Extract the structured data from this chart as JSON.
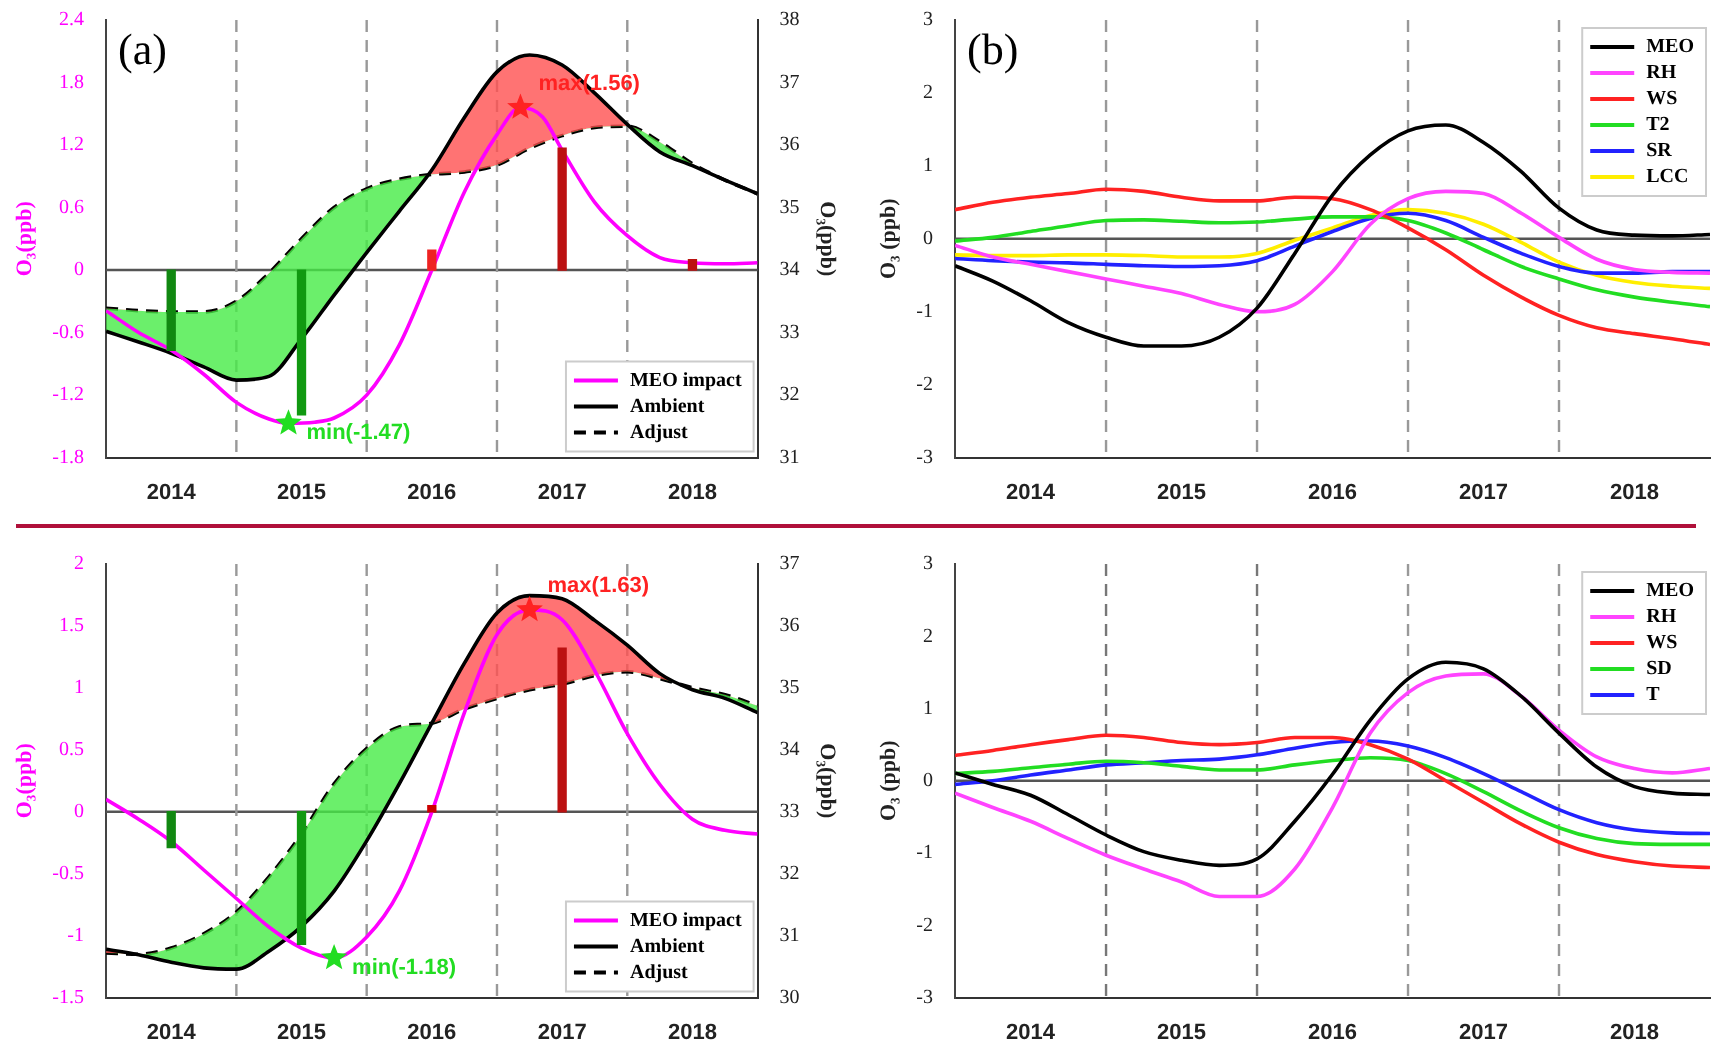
{
  "chart_data": [
    {
      "type": "line",
      "ylabel": "O₃(ppb)",
      "y2label": "O₃(ppb)",
      "annotations": [
        "(a)",
        {
          "text": "max(1.56)",
          "x": 2016.68,
          "y": 1.56
        },
        {
          "text": "min(-1.47)",
          "x": 2014.9,
          "y": -1.47
        }
      ],
      "x": [
        2013.5,
        2013.75,
        2014,
        2014.25,
        2014.5,
        2014.75,
        2015,
        2015.25,
        2015.5,
        2015.75,
        2016,
        2016.25,
        2016.5,
        2016.75,
        2017,
        2017.25,
        2017.5,
        2017.75,
        2018,
        2018.25,
        2018.5
      ],
      "series": [
        {
          "name": "MEO impact",
          "color": "#ff00ff",
          "x": [
            2013.5,
            2013.75,
            2014,
            2014.25,
            2014.5,
            2014.75,
            2014.9,
            2015.1,
            2015.25,
            2015.5,
            2015.75,
            2016,
            2016.25,
            2016.5,
            2016.68,
            2016.85,
            2017,
            2017.25,
            2017.5,
            2017.75,
            2018,
            2018.25,
            2018.5
          ],
          "values": [
            -0.39,
            -0.6,
            -0.77,
            -1.0,
            -1.27,
            -1.43,
            -1.47,
            -1.46,
            -1.42,
            -1.2,
            -0.72,
            0,
            0.75,
            1.3,
            1.56,
            1.47,
            1.15,
            0.65,
            0.33,
            0.12,
            0.07,
            0.06,
            0.07
          ]
        },
        {
          "name": "Ambient",
          "color": "#000000",
          "axis": "y2",
          "values": [
            33.02,
            32.85,
            32.67,
            32.45,
            32.24,
            32.3,
            32.9,
            33.6,
            34.28,
            34.94,
            35.6,
            36.44,
            37.17,
            37.44,
            37.28,
            36.83,
            36.33,
            35.89,
            35.67,
            35.44,
            35.22
          ]
        },
        {
          "name": "Adjust",
          "color": "#000000",
          "axis": "y2",
          "line_style": "dashed",
          "values": [
            33.39,
            33.35,
            33.33,
            33.33,
            33.5,
            33.95,
            34.5,
            35.0,
            35.3,
            35.45,
            35.53,
            35.57,
            35.68,
            35.95,
            36.15,
            36.28,
            36.3,
            36.05,
            35.7,
            35.44,
            35.22
          ]
        },
        {
          "type": "bar",
          "x": [
            2014,
            2015,
            2016,
            2017,
            2018
          ],
          "values": [
            -0.77,
            -1.39,
            0.19,
            1.17,
            0.1
          ],
          "colors": [
            "#118811",
            "#119911",
            "#ee2222",
            "#bb1111",
            "#bb1111"
          ]
        },
        {
          "type": "scatter",
          "marker": "star",
          "color": "#22dd22",
          "x": [
            2014.9
          ],
          "values": [
            -1.47
          ]
        },
        {
          "type": "scatter",
          "marker": "star",
          "color": "#ff2222",
          "x": [
            2016.68
          ],
          "values": [
            1.56
          ]
        }
      ],
      "xlim": [
        2013.5,
        2018.5
      ],
      "xticks": [
        2014,
        2015,
        2016,
        2017,
        2018
      ],
      "ylim": [
        -1.8,
        2.4
      ],
      "yticks": [
        -1.8,
        -1.2,
        -0.6,
        0,
        0.6,
        1.2,
        1.8,
        2.4
      ],
      "y2lim": [
        31,
        38
      ],
      "y2ticks": [
        31,
        32,
        33,
        34,
        35,
        36,
        37,
        38
      ],
      "ref_lines": [
        {
          "axis": "y",
          "value": 0,
          "color": "#555555"
        },
        {
          "axis": "x",
          "value": 2014.5,
          "color": "#999999",
          "line_style": "dashed"
        },
        {
          "axis": "x",
          "value": 2015.5,
          "color": "#999999",
          "line_style": "dashed"
        },
        {
          "axis": "x",
          "value": 2016.5,
          "color": "#999999",
          "line_style": "dashed"
        },
        {
          "axis": "x",
          "value": 2017.5,
          "color": "#999999",
          "line_style": "dashed"
        }
      ],
      "legend": "bottom right"
    },
    {
      "type": "line",
      "ylabel": "O₃ (ppb)",
      "annotations": [
        "(b)"
      ],
      "x": [
        2013.5,
        2013.75,
        2014,
        2014.25,
        2014.5,
        2014.75,
        2015,
        2015.25,
        2015.5,
        2015.75,
        2016,
        2016.25,
        2016.5,
        2016.75,
        2017,
        2017.25,
        2017.5,
        2017.75,
        2018,
        2018.25,
        2018.5
      ],
      "series": [
        {
          "name": "MEO",
          "color": "#000000",
          "values": [
            -0.37,
            -0.58,
            -0.85,
            -1.15,
            -1.35,
            -1.47,
            -1.47,
            -1.35,
            -0.95,
            -0.2,
            0.6,
            1.15,
            1.48,
            1.56,
            1.32,
            0.92,
            0.42,
            0.12,
            0.05,
            0.04,
            0.06
          ]
        },
        {
          "name": "RH",
          "color": "#ff44ff",
          "values": [
            -0.09,
            -0.25,
            -0.35,
            -0.45,
            -0.55,
            -0.65,
            -0.75,
            -0.9,
            -1.0,
            -0.9,
            -0.45,
            0.2,
            0.55,
            0.65,
            0.62,
            0.35,
            0.02,
            -0.28,
            -0.42,
            -0.46,
            -0.47
          ]
        },
        {
          "name": "WS",
          "color": "#ff2222",
          "values": [
            0.4,
            0.5,
            0.57,
            0.62,
            0.68,
            0.65,
            0.57,
            0.52,
            0.52,
            0.57,
            0.55,
            0.4,
            0.15,
            -0.15,
            -0.5,
            -0.8,
            -1.05,
            -1.22,
            -1.3,
            -1.37,
            -1.45
          ]
        },
        {
          "name": "T2",
          "color": "#22dd22",
          "values": [
            -0.03,
            0.02,
            0.1,
            0.18,
            0.25,
            0.26,
            0.24,
            0.22,
            0.23,
            0.27,
            0.3,
            0.3,
            0.25,
            0.08,
            -0.15,
            -0.38,
            -0.55,
            -0.7,
            -0.8,
            -0.87,
            -0.93
          ]
        },
        {
          "name": "SR",
          "color": "#2222ff",
          "values": [
            -0.27,
            -0.3,
            -0.32,
            -0.33,
            -0.35,
            -0.37,
            -0.38,
            -0.37,
            -0.3,
            -0.1,
            0.1,
            0.28,
            0.35,
            0.25,
            0.02,
            -0.2,
            -0.38,
            -0.47,
            -0.47,
            -0.45,
            -0.45
          ]
        },
        {
          "name": "LCC",
          "color": "#ffee00",
          "values": [
            -0.22,
            -0.23,
            -0.23,
            -0.22,
            -0.22,
            -0.23,
            -0.25,
            -0.25,
            -0.2,
            -0.02,
            0.15,
            0.32,
            0.4,
            0.35,
            0.2,
            -0.05,
            -0.32,
            -0.5,
            -0.6,
            -0.65,
            -0.68
          ]
        }
      ],
      "xlim": [
        2013.5,
        2018.5
      ],
      "xticks": [
        2014,
        2015,
        2016,
        2017,
        2018
      ],
      "ylim": [
        -3,
        3
      ],
      "yticks": [
        -3,
        -2,
        -1,
        0,
        1,
        2,
        3
      ],
      "ref_lines": [
        {
          "axis": "y",
          "value": 0,
          "color": "#555555"
        },
        {
          "axis": "x",
          "value": 2014.5,
          "color": "#999999",
          "line_style": "dashed"
        },
        {
          "axis": "x",
          "value": 2015.5,
          "color": "#999999",
          "line_style": "dashed"
        },
        {
          "axis": "x",
          "value": 2016.5,
          "color": "#999999",
          "line_style": "dashed"
        },
        {
          "axis": "x",
          "value": 2017.5,
          "color": "#999999",
          "line_style": "dashed"
        }
      ],
      "legend": "top right"
    },
    {
      "type": "line",
      "ylabel": "O₃(ppb)",
      "y2label": "O₃(ppb)",
      "annotations": [
        {
          "text": "max(1.63)",
          "x": 2016.75,
          "y": 1.63
        },
        {
          "text": "min(-1.18)",
          "x": 2015.25,
          "y": -1.18
        }
      ],
      "x": [
        2013.5,
        2013.75,
        2014,
        2014.25,
        2014.5,
        2014.75,
        2015,
        2015.25,
        2015.5,
        2015.75,
        2016,
        2016.25,
        2016.5,
        2016.75,
        2017,
        2017.25,
        2017.5,
        2017.75,
        2018,
        2018.25,
        2018.5
      ],
      "series": [
        {
          "name": "MEO impact",
          "color": "#ff00ff",
          "values": [
            0.1,
            -0.06,
            -0.24,
            -0.47,
            -0.7,
            -0.93,
            -1.1,
            -1.18,
            -1.01,
            -0.64,
            0,
            0.8,
            1.43,
            1.63,
            1.55,
            1.14,
            0.63,
            0.22,
            -0.06,
            -0.15,
            -0.18
          ]
        },
        {
          "name": "Ambient",
          "color": "#000000",
          "axis": "y2",
          "values": [
            30.78,
            30.69,
            30.57,
            30.48,
            30.46,
            30.75,
            31.15,
            31.72,
            32.53,
            33.45,
            34.43,
            35.4,
            36.21,
            36.49,
            36.44,
            36.09,
            35.69,
            35.23,
            34.97,
            34.83,
            34.6
          ]
        },
        {
          "name": "Adjust",
          "color": "#000000",
          "axis": "y2",
          "line_style": "dashed",
          "values": [
            30.72,
            30.7,
            30.8,
            31.03,
            31.38,
            31.95,
            32.64,
            33.45,
            34.02,
            34.37,
            34.43,
            34.66,
            34.83,
            34.97,
            35.06,
            35.2,
            35.26,
            35.15,
            35.0,
            34.89,
            34.71
          ]
        },
        {
          "type": "bar",
          "x": [
            2014,
            2015,
            2016,
            2017
          ],
          "values": [
            -0.29,
            -1.07,
            0.05,
            1.32
          ],
          "colors": [
            "#118811",
            "#119911",
            "#cc0000",
            "#bb1111"
          ]
        },
        {
          "type": "scatter",
          "marker": "star",
          "color": "#22dd22",
          "x": [
            2015.25
          ],
          "values": [
            -1.18
          ]
        },
        {
          "type": "scatter",
          "marker": "star",
          "color": "#ff2222",
          "x": [
            2016.75
          ],
          "values": [
            1.63
          ]
        }
      ],
      "xlim": [
        2013.5,
        2018.5
      ],
      "xticks": [
        2014,
        2015,
        2016,
        2017,
        2018
      ],
      "ylim": [
        -1.5,
        2
      ],
      "yticks": [
        -1.5,
        -1,
        -0.5,
        0,
        0.5,
        1,
        1.5,
        2
      ],
      "y2lim": [
        30,
        37
      ],
      "y2ticks": [
        30,
        31,
        32,
        33,
        34,
        35,
        36,
        37
      ],
      "ref_lines": [
        {
          "axis": "y",
          "value": 0,
          "color": "#555555"
        },
        {
          "axis": "x",
          "value": 2014.5,
          "color": "#999999",
          "line_style": "dashed"
        },
        {
          "axis": "x",
          "value": 2015.5,
          "color": "#999999",
          "line_style": "dashed"
        },
        {
          "axis": "x",
          "value": 2016.5,
          "color": "#999999",
          "line_style": "dashed"
        },
        {
          "axis": "x",
          "value": 2017.5,
          "color": "#999999",
          "line_style": "dashed"
        }
      ],
      "legend": "bottom right"
    },
    {
      "type": "line",
      "ylabel": "O₃ (ppb)",
      "x": [
        2013.5,
        2013.75,
        2014,
        2014.25,
        2014.5,
        2014.75,
        2015,
        2015.25,
        2015.5,
        2015.75,
        2016,
        2016.25,
        2016.5,
        2016.75,
        2017,
        2017.25,
        2017.5,
        2017.75,
        2018,
        2018.25,
        2018.5
      ],
      "series": [
        {
          "name": "MEO",
          "color": "#000000",
          "values": [
            0.11,
            -0.05,
            -0.2,
            -0.47,
            -0.75,
            -0.98,
            -1.1,
            -1.17,
            -1.08,
            -0.56,
            0.09,
            0.84,
            1.41,
            1.64,
            1.55,
            1.17,
            0.66,
            0.19,
            -0.08,
            -0.17,
            -0.19
          ]
        },
        {
          "name": "RH",
          "color": "#ff44ff",
          "values": [
            -0.17,
            -0.37,
            -0.56,
            -0.8,
            -1.03,
            -1.22,
            -1.4,
            -1.6,
            -1.6,
            -1.22,
            -0.37,
            0.66,
            1.22,
            1.45,
            1.48,
            1.17,
            0.7,
            0.33,
            0.17,
            0.11,
            0.17
          ]
        },
        {
          "name": "WS",
          "color": "#ff2222",
          "values": [
            0.35,
            0.42,
            0.5,
            0.57,
            0.63,
            0.6,
            0.53,
            0.5,
            0.53,
            0.6,
            0.6,
            0.5,
            0.3,
            0,
            -0.3,
            -0.6,
            -0.85,
            -1.02,
            -1.12,
            -1.18,
            -1.2
          ]
        },
        {
          "name": "SD",
          "color": "#22dd22",
          "values": [
            0.1,
            0.13,
            0.18,
            0.23,
            0.27,
            0.25,
            0.2,
            0.15,
            0.15,
            0.22,
            0.28,
            0.32,
            0.28,
            0.1,
            -0.15,
            -0.42,
            -0.65,
            -0.8,
            -0.87,
            -0.88,
            -0.88
          ]
        },
        {
          "name": "T",
          "color": "#2222ff",
          "values": [
            -0.05,
            0,
            0.08,
            0.15,
            0.22,
            0.25,
            0.28,
            0.3,
            0.36,
            0.45,
            0.53,
            0.55,
            0.48,
            0.32,
            0.1,
            -0.15,
            -0.4,
            -0.58,
            -0.68,
            -0.72,
            -0.73
          ]
        }
      ],
      "xlim": [
        2013.5,
        2018.5
      ],
      "xticks": [
        2014,
        2015,
        2016,
        2017,
        2018
      ],
      "ylim": [
        -3,
        3
      ],
      "yticks": [
        -3,
        -2,
        -1,
        0,
        1,
        2,
        3
      ],
      "ref_lines": [
        {
          "axis": "y",
          "value": 0,
          "color": "#555555"
        },
        {
          "axis": "x",
          "value": 2014.5,
          "color": "#777777",
          "line_style": "dashed"
        },
        {
          "axis": "x",
          "value": 2015.5,
          "color": "#777777",
          "line_style": "dashed"
        },
        {
          "axis": "x",
          "value": 2016.5,
          "color": "#999999",
          "line_style": "dashed"
        },
        {
          "axis": "x",
          "value": 2017.5,
          "color": "#999999",
          "line_style": "dashed"
        }
      ],
      "legend": "top right"
    }
  ]
}
